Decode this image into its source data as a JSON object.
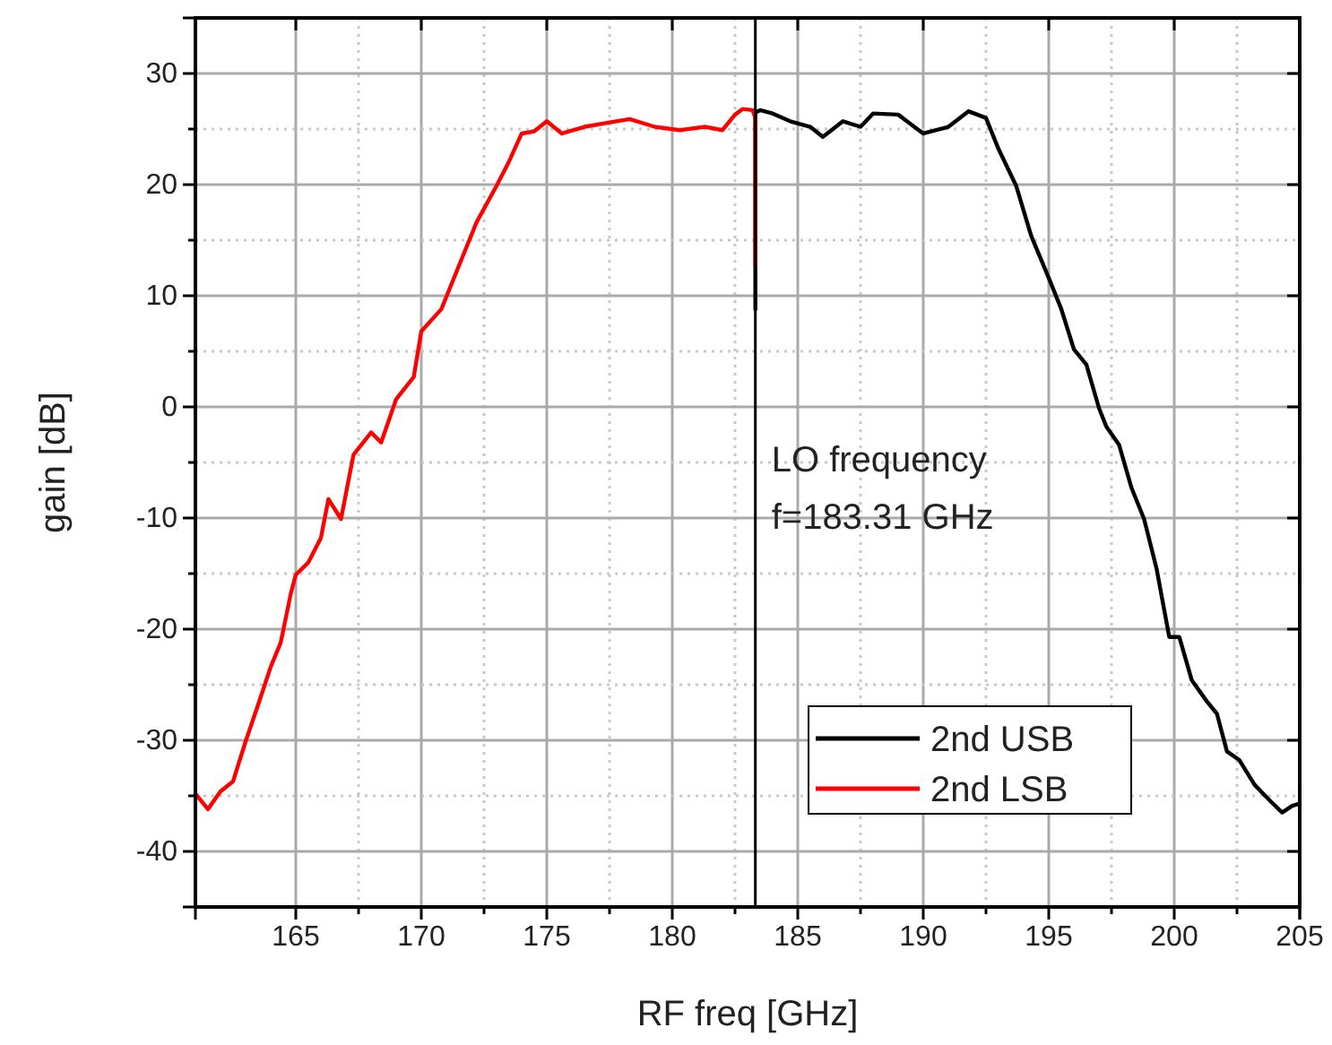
{
  "chart_data": {
    "type": "line",
    "xlabel": "RF freq [GHz]",
    "ylabel": "gain [dB]",
    "xlim": [
      161,
      205
    ],
    "xticks": [
      165,
      170,
      175,
      180,
      185,
      190,
      195,
      200,
      205
    ],
    "ylim": [
      -45,
      35
    ],
    "yticks": [
      -40,
      -30,
      -20,
      -10,
      0,
      10,
      20,
      30
    ],
    "grid": true,
    "legend": "bottom right",
    "line_style": "solid",
    "series": [
      {
        "name": "2nd USB",
        "color": "#000000",
        "x": [
          183.31,
          183.31,
          183.5,
          184,
          184.7,
          185.5,
          186,
          186.8,
          187.5,
          188,
          189,
          190,
          191,
          191.8,
          192.5,
          193,
          193.7,
          194.3,
          195,
          195.5,
          196,
          196.5,
          197,
          197.3,
          197.8,
          198.3,
          198.8,
          199.3,
          199.8,
          200.2,
          200.7,
          201.3,
          201.7,
          202.1,
          202.6,
          203.2,
          203.8,
          204.3,
          204.7,
          205
        ],
        "values": [
          8.8,
          26.5,
          26.7,
          26.4,
          25.7,
          25.2,
          24.3,
          25.7,
          25.2,
          26.4,
          26.3,
          24.6,
          25.2,
          26.6,
          26,
          23.2,
          19.9,
          15.4,
          11.6,
          8.8,
          5.2,
          3.8,
          -0.1,
          -1.8,
          -3.4,
          -7.3,
          -10.1,
          -14.6,
          -20.7,
          -20.7,
          -24.6,
          -26.5,
          -27.6,
          -31,
          -31.8,
          -34,
          -35.4,
          -36.5,
          -35.9,
          -35.7
        ]
      },
      {
        "name": "2nd LSB",
        "color": "#ff0000",
        "x": [
          161,
          161.5,
          162,
          162.5,
          163,
          163.5,
          164,
          164.4,
          164.8,
          165,
          165.5,
          166,
          166.3,
          166.8,
          167.3,
          168,
          168.4,
          169,
          169.7,
          170,
          170.8,
          171.5,
          172.2,
          173,
          173.5,
          174,
          174.5,
          175,
          175.6,
          176.5,
          177.5,
          178.3,
          179.3,
          180.3,
          181.3,
          182,
          182.5,
          182.8,
          183.2,
          183.31,
          183.31
        ],
        "values": [
          -34.8,
          -36.2,
          -34.6,
          -33.7,
          -30.1,
          -26.8,
          -23.4,
          -21.2,
          -16.8,
          -15.1,
          -14,
          -11.8,
          -8.3,
          -10.1,
          -4.3,
          -2.3,
          -3.2,
          0.7,
          2.7,
          6.8,
          8.8,
          12.7,
          16.6,
          19.9,
          22.1,
          24.6,
          24.8,
          25.7,
          24.6,
          25.2,
          25.6,
          25.9,
          25.2,
          24.9,
          25.2,
          24.9,
          26.3,
          26.8,
          26.7,
          26,
          12.7
        ]
      }
    ],
    "ref_lines": [
      {
        "axis": "x",
        "value": 183.31,
        "label": "LO frequency\nf=183.31 GHz",
        "color": "#000000"
      }
    ]
  }
}
